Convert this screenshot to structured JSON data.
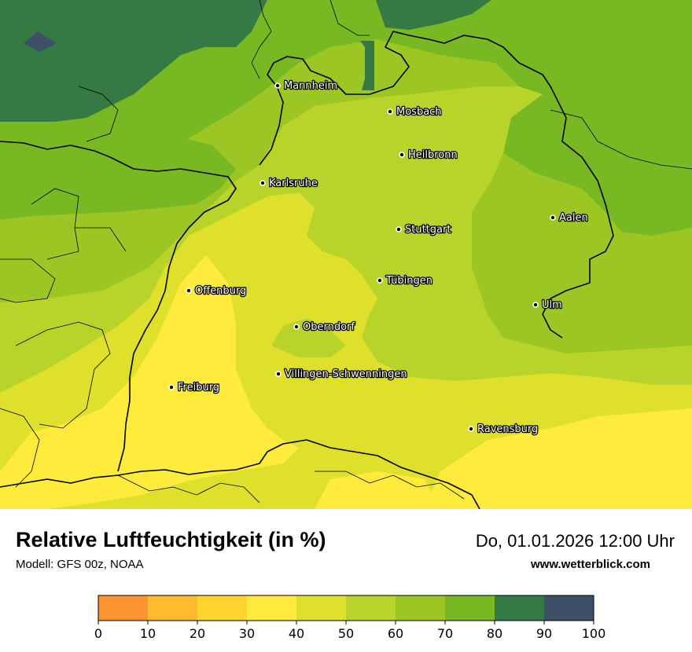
{
  "title": "Relative Luftfeuchtigkeit (in %)",
  "model": "Modell: GFS 00z, NOAA",
  "datetime": "Do, 01.01.2026 12:00 Uhr",
  "website": "www.wetterblick.com",
  "colors": {
    "band_30_40": "#ffeb3b",
    "band_40_50": "#dfe02c",
    "band_50_60": "#b8d32a",
    "band_60_70": "#9cc623",
    "band_70_80": "#78b823",
    "band_80_90": "#357a45",
    "band_90_100": "#3d5068",
    "borders": "#000000"
  },
  "cities": [
    {
      "name": "Mannheim"
    },
    {
      "name": "Mosbach"
    },
    {
      "name": "Heilbronn"
    },
    {
      "name": "Karlsruhe"
    },
    {
      "name": "Stuttgart"
    },
    {
      "name": "Aalen"
    },
    {
      "name": "Tübingen"
    },
    {
      "name": "Offenburg"
    },
    {
      "name": "Ulm"
    },
    {
      "name": "Oberndorf"
    },
    {
      "name": "Villingen-Schwenningen"
    },
    {
      "name": "Freiburg"
    },
    {
      "name": "Ravensburg"
    }
  ],
  "legend": {
    "ticks": [
      "0",
      "10",
      "20",
      "30",
      "40",
      "50",
      "60",
      "70",
      "80",
      "90",
      "100"
    ],
    "colors": [
      "#ff9530",
      "#ffba2e",
      "#ffd52e",
      "#ffeb3b",
      "#dfe02c",
      "#b8d32a",
      "#9cc623",
      "#78b823",
      "#357a45",
      "#3d5068"
    ]
  }
}
